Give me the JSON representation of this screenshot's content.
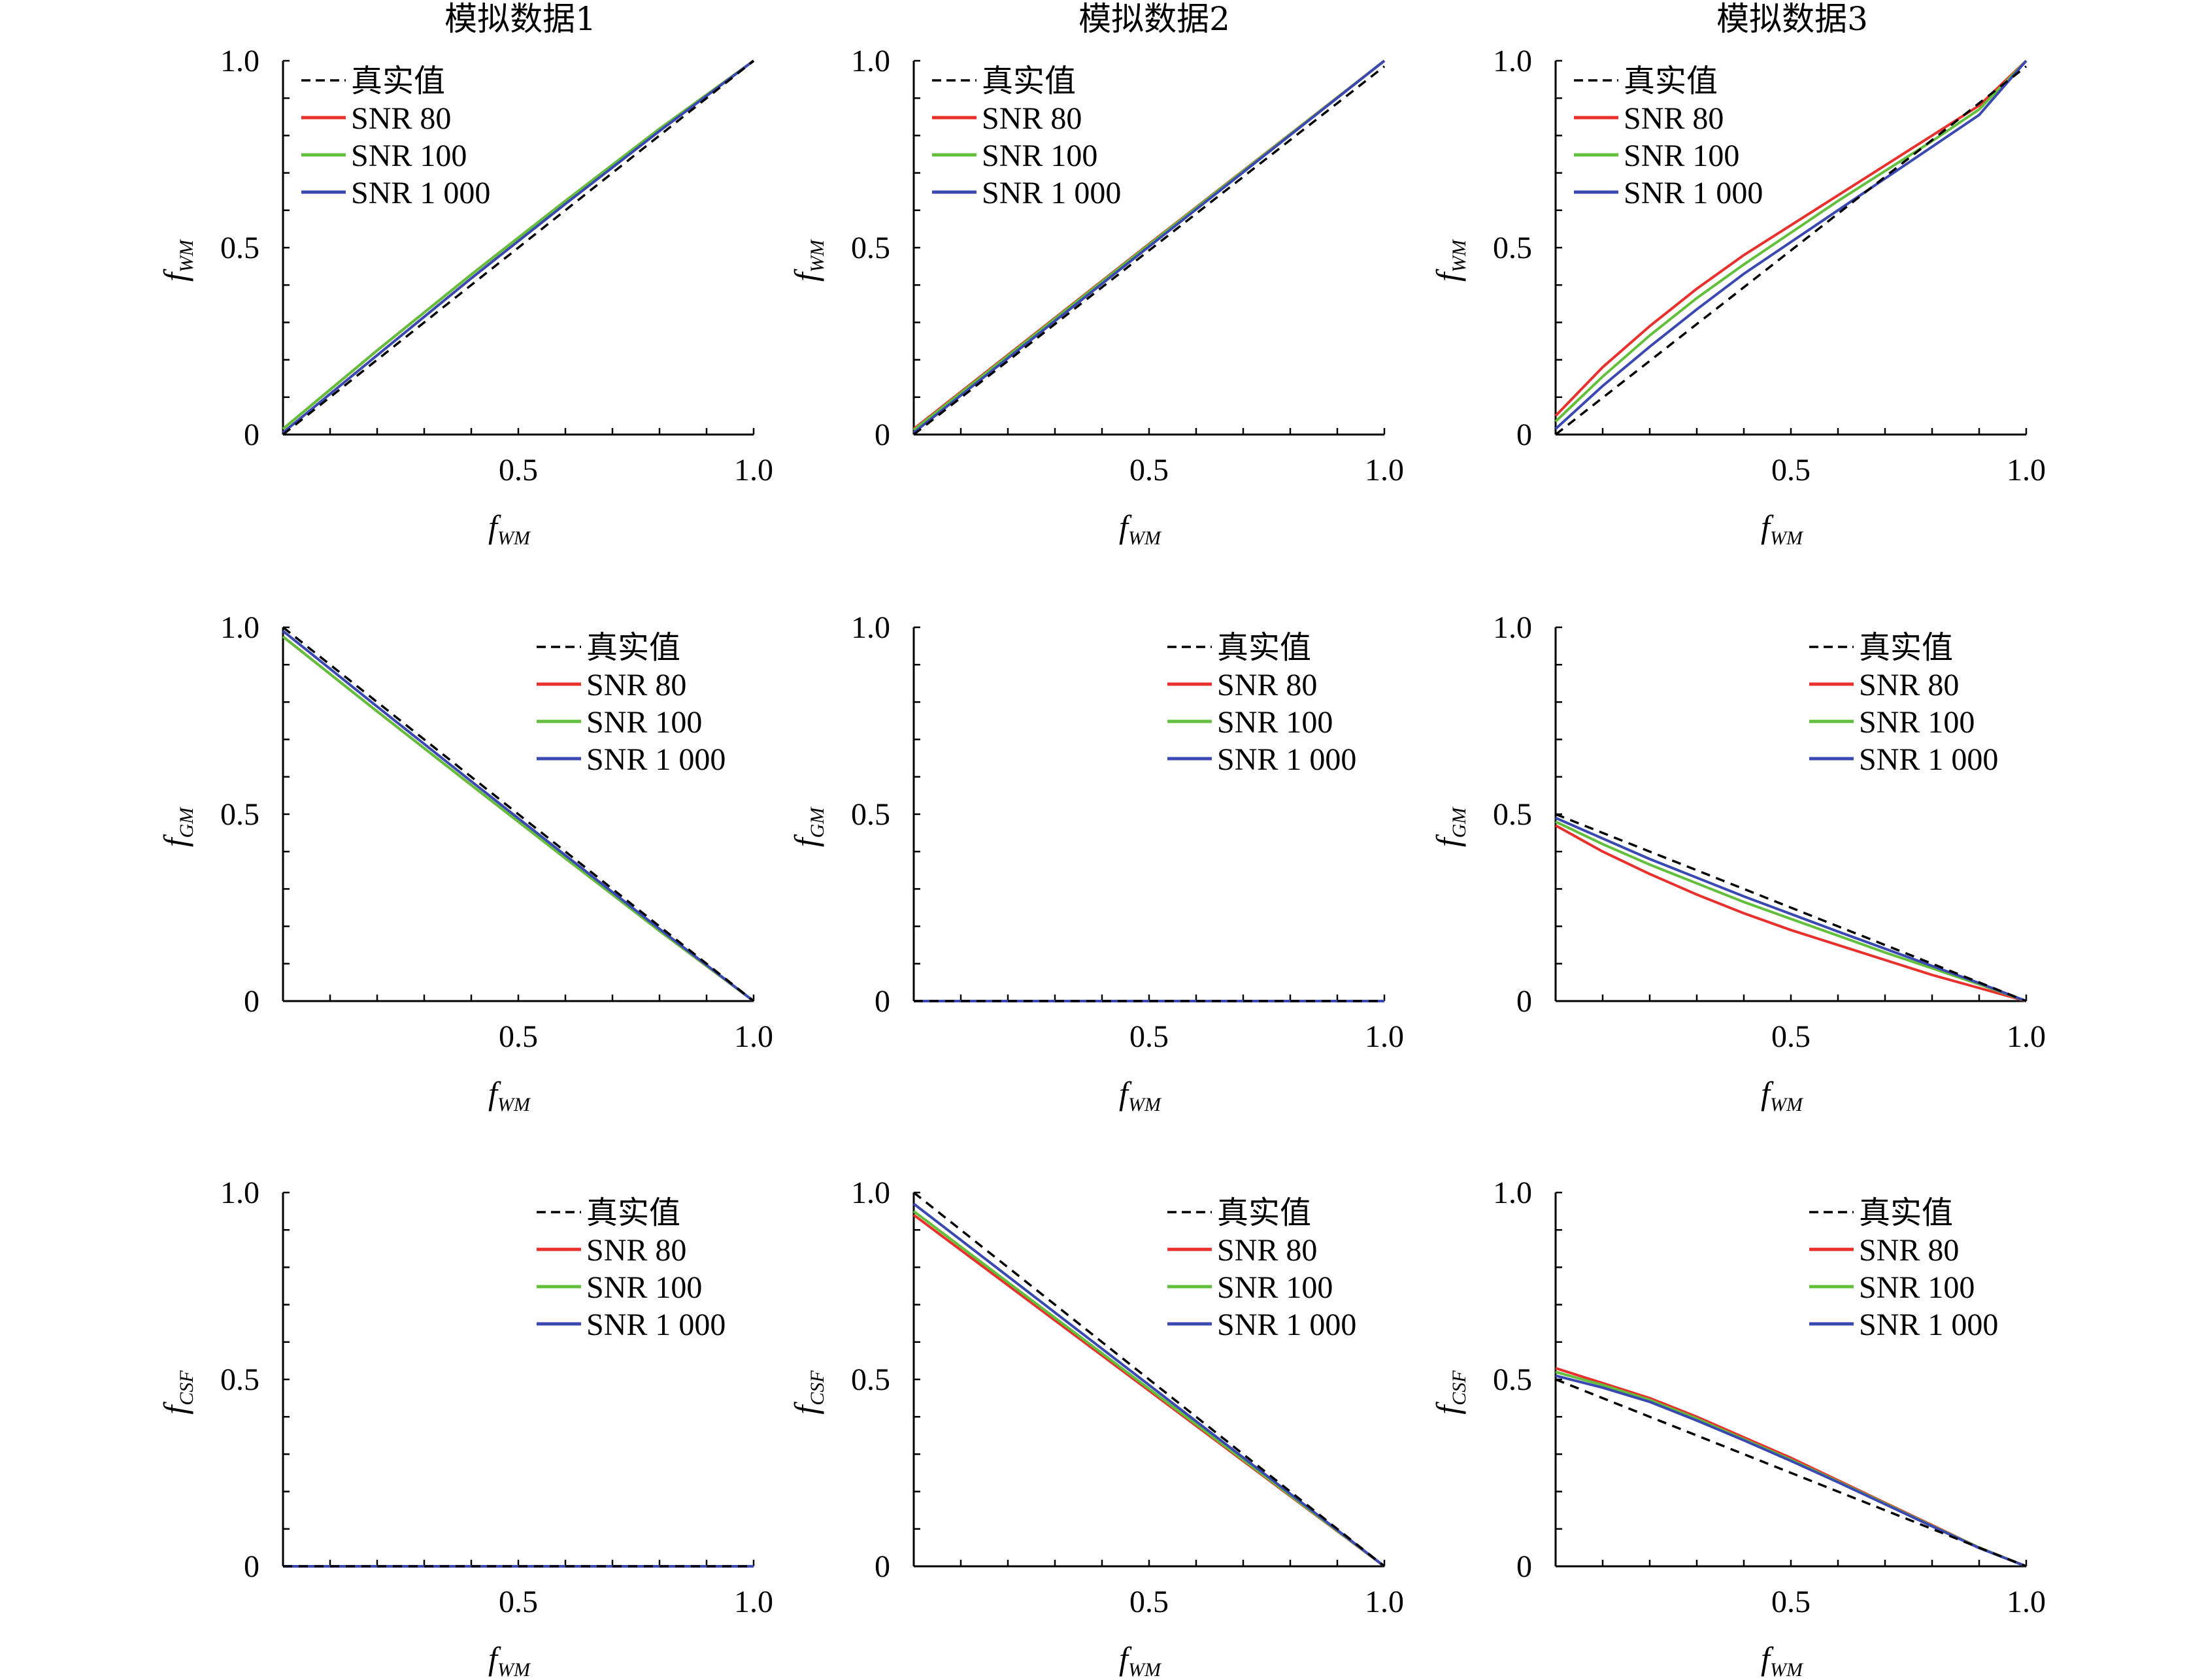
{
  "colors": {
    "truth": "#000000",
    "snr80": "#e8312c",
    "snr100": "#62bf3c",
    "snr1000": "#3a49b2"
  },
  "column_titles": [
    "模拟数据1",
    "模拟数据2",
    "模拟数据3"
  ],
  "legend": {
    "truth": "真实值",
    "snr80": "SNR 80",
    "snr100": "SNR 100",
    "snr1000": "SNR 1 000"
  },
  "chart_data": [
    {
      "type": "line",
      "row": 0,
      "col": 0,
      "xlabel": "f",
      "xlabel_sub": "WM",
      "ylabel": "f",
      "ylabel_sub": "WM",
      "xlim": [
        0,
        1
      ],
      "ylim": [
        0,
        1
      ],
      "xticklabels": [
        "0.5",
        "1.0"
      ],
      "yticklabels": [
        "0",
        "0.5",
        "1.0"
      ],
      "legend_position": "top-left",
      "series": [
        {
          "name": "真实值",
          "key": "truth",
          "dashed": true,
          "x": [
            0,
            1
          ],
          "y": [
            0,
            1
          ]
        },
        {
          "name": "SNR 80",
          "key": "snr80",
          "x": [
            0,
            0.2,
            0.4,
            0.6,
            0.8,
            1
          ],
          "y": [
            0.015,
            0.225,
            0.428,
            0.625,
            0.818,
            1
          ]
        },
        {
          "name": "SNR 100",
          "key": "snr100",
          "x": [
            0,
            0.2,
            0.4,
            0.6,
            0.8,
            1
          ],
          "y": [
            0.015,
            0.225,
            0.428,
            0.625,
            0.818,
            1
          ]
        },
        {
          "name": "SNR 1 000",
          "key": "snr1000",
          "x": [
            0,
            0.2,
            0.4,
            0.6,
            0.8,
            1
          ],
          "y": [
            0.005,
            0.212,
            0.418,
            0.617,
            0.812,
            1
          ]
        }
      ]
    },
    {
      "type": "line",
      "row": 0,
      "col": 1,
      "xlabel": "f",
      "xlabel_sub": "WM",
      "ylabel": "f",
      "ylabel_sub": "WM",
      "xlim": [
        0,
        1
      ],
      "ylim": [
        0,
        1
      ],
      "xticklabels": [
        "0.5",
        "1.0"
      ],
      "yticklabels": [
        "0",
        "0.5",
        "1.0"
      ],
      "legend_position": "top-left",
      "series": [
        {
          "name": "真实值",
          "key": "truth",
          "dashed": true,
          "x": [
            0,
            1
          ],
          "y": [
            0,
            0.985
          ]
        },
        {
          "name": "SNR 80",
          "key": "snr80",
          "x": [
            0,
            0.5,
            1
          ],
          "y": [
            0.015,
            0.51,
            1
          ]
        },
        {
          "name": "SNR 100",
          "key": "snr100",
          "x": [
            0,
            0.5,
            1
          ],
          "y": [
            0.012,
            0.508,
            1
          ]
        },
        {
          "name": "SNR 1 000",
          "key": "snr1000",
          "x": [
            0,
            0.5,
            1
          ],
          "y": [
            0.005,
            0.503,
            1
          ]
        }
      ]
    },
    {
      "type": "line",
      "row": 0,
      "col": 2,
      "xlabel": "f",
      "xlabel_sub": "WM",
      "ylabel": "f",
      "ylabel_sub": "WM",
      "xlim": [
        0,
        1
      ],
      "ylim": [
        0,
        1
      ],
      "xticklabels": [
        "0.5",
        "1.0"
      ],
      "yticklabels": [
        "0",
        "0.5",
        "1.0"
      ],
      "legend_position": "top-left",
      "series": [
        {
          "name": "真实值",
          "key": "truth",
          "dashed": true,
          "x": [
            0,
            1
          ],
          "y": [
            0,
            0.985
          ]
        },
        {
          "name": "SNR 80",
          "key": "snr80",
          "x": [
            0,
            0.1,
            0.2,
            0.3,
            0.4,
            0.5,
            0.6,
            0.7,
            0.8,
            0.9,
            1
          ],
          "y": [
            0.05,
            0.18,
            0.29,
            0.39,
            0.48,
            0.56,
            0.64,
            0.72,
            0.8,
            0.88,
            1
          ]
        },
        {
          "name": "SNR 100",
          "key": "snr100",
          "x": [
            0,
            0.1,
            0.2,
            0.3,
            0.4,
            0.5,
            0.6,
            0.7,
            0.8,
            0.9,
            1
          ],
          "y": [
            0.035,
            0.155,
            0.265,
            0.365,
            0.455,
            0.54,
            0.625,
            0.705,
            0.785,
            0.87,
            1
          ]
        },
        {
          "name": "SNR 1 000",
          "key": "snr1000",
          "x": [
            0,
            0.1,
            0.2,
            0.3,
            0.4,
            0.5,
            0.6,
            0.7,
            0.8,
            0.9,
            1
          ],
          "y": [
            0.015,
            0.13,
            0.235,
            0.335,
            0.43,
            0.515,
            0.6,
            0.685,
            0.77,
            0.855,
            1
          ]
        }
      ]
    },
    {
      "type": "line",
      "row": 1,
      "col": 0,
      "xlabel": "f",
      "xlabel_sub": "WM",
      "ylabel": "f",
      "ylabel_sub": "GM",
      "xlim": [
        0,
        1
      ],
      "ylim": [
        0,
        1
      ],
      "xticklabels": [
        "0.5",
        "1.0"
      ],
      "yticklabels": [
        "0",
        "0.5",
        "1.0"
      ],
      "legend_position": "top-right",
      "series": [
        {
          "name": "真实值",
          "key": "truth",
          "dashed": true,
          "x": [
            0,
            1
          ],
          "y": [
            1,
            0
          ]
        },
        {
          "name": "SNR 80",
          "key": "snr80",
          "x": [
            0,
            0.2,
            0.4,
            0.6,
            0.8,
            1
          ],
          "y": [
            0.975,
            0.775,
            0.578,
            0.382,
            0.188,
            0
          ]
        },
        {
          "name": "SNR 100",
          "key": "snr100",
          "x": [
            0,
            0.2,
            0.4,
            0.6,
            0.8,
            1
          ],
          "y": [
            0.975,
            0.775,
            0.578,
            0.382,
            0.188,
            0
          ]
        },
        {
          "name": "SNR 1 000",
          "key": "snr1000",
          "x": [
            0,
            0.2,
            0.4,
            0.6,
            0.8,
            1
          ],
          "y": [
            0.99,
            0.788,
            0.588,
            0.39,
            0.193,
            0
          ]
        }
      ]
    },
    {
      "type": "line",
      "row": 1,
      "col": 1,
      "xlabel": "f",
      "xlabel_sub": "WM",
      "ylabel": "f",
      "ylabel_sub": "GM",
      "xlim": [
        0,
        1
      ],
      "ylim": [
        0,
        1
      ],
      "xticklabels": [
        "0.5",
        "1.0"
      ],
      "yticklabels": [
        "0",
        "0.5",
        "1.0"
      ],
      "legend_position": "top-right",
      "series": [
        {
          "name": "真实值",
          "key": "truth",
          "dashed": true,
          "x": [
            0,
            1
          ],
          "y": [
            0,
            0
          ]
        },
        {
          "name": "SNR 80",
          "key": "snr80",
          "x": [
            0,
            1
          ],
          "y": [
            0,
            0
          ]
        },
        {
          "name": "SNR 100",
          "key": "snr100",
          "x": [
            0,
            1
          ],
          "y": [
            0,
            0
          ]
        },
        {
          "name": "SNR 1 000",
          "key": "snr1000",
          "x": [
            0,
            1
          ],
          "y": [
            0,
            0
          ]
        }
      ]
    },
    {
      "type": "line",
      "row": 1,
      "col": 2,
      "xlabel": "f",
      "xlabel_sub": "WM",
      "ylabel": "f",
      "ylabel_sub": "GM",
      "xlim": [
        0,
        1
      ],
      "ylim": [
        0,
        1
      ],
      "xticklabels": [
        "0.5",
        "1.0"
      ],
      "yticklabels": [
        "0",
        "0.5",
        "1.0"
      ],
      "legend_position": "top-right",
      "series": [
        {
          "name": "真实值",
          "key": "truth",
          "dashed": true,
          "x": [
            0,
            1
          ],
          "y": [
            0.5,
            0
          ]
        },
        {
          "name": "SNR 80",
          "key": "snr80",
          "x": [
            0,
            0.1,
            0.2,
            0.3,
            0.4,
            0.5,
            0.6,
            0.7,
            0.8,
            0.9,
            1
          ],
          "y": [
            0.47,
            0.4,
            0.34,
            0.285,
            0.235,
            0.19,
            0.15,
            0.11,
            0.07,
            0.035,
            0
          ]
        },
        {
          "name": "SNR 100",
          "key": "snr100",
          "x": [
            0,
            0.1,
            0.2,
            0.3,
            0.4,
            0.5,
            0.6,
            0.7,
            0.8,
            0.9,
            1
          ],
          "y": [
            0.48,
            0.42,
            0.365,
            0.315,
            0.265,
            0.22,
            0.175,
            0.13,
            0.088,
            0.045,
            0
          ]
        },
        {
          "name": "SNR 1 000",
          "key": "snr1000",
          "x": [
            0,
            0.1,
            0.2,
            0.3,
            0.4,
            0.5,
            0.6,
            0.7,
            0.8,
            0.9,
            1
          ],
          "y": [
            0.49,
            0.435,
            0.38,
            0.33,
            0.28,
            0.233,
            0.186,
            0.14,
            0.094,
            0.048,
            0
          ]
        }
      ]
    },
    {
      "type": "line",
      "row": 2,
      "col": 0,
      "xlabel": "f",
      "xlabel_sub": "WM",
      "ylabel": "f",
      "ylabel_sub": "CSF",
      "xlim": [
        0,
        1
      ],
      "ylim": [
        0,
        1
      ],
      "xticklabels": [
        "0.5",
        "1.0"
      ],
      "yticklabels": [
        "0",
        "0.5",
        "1.0"
      ],
      "legend_position": "top-right",
      "series": [
        {
          "name": "真实值",
          "key": "truth",
          "dashed": true,
          "x": [
            0,
            1
          ],
          "y": [
            0,
            0
          ]
        },
        {
          "name": "SNR 80",
          "key": "snr80",
          "x": [
            0,
            1
          ],
          "y": [
            0,
            0
          ]
        },
        {
          "name": "SNR 100",
          "key": "snr100",
          "x": [
            0,
            1
          ],
          "y": [
            0,
            0
          ]
        },
        {
          "name": "SNR 1 000",
          "key": "snr1000",
          "x": [
            0,
            1
          ],
          "y": [
            0,
            0
          ]
        }
      ]
    },
    {
      "type": "line",
      "row": 2,
      "col": 1,
      "xlabel": "f",
      "xlabel_sub": "WM",
      "ylabel": "f",
      "ylabel_sub": "CSF",
      "xlim": [
        0,
        1
      ],
      "ylim": [
        0,
        1
      ],
      "xticklabels": [
        "0.5",
        "1.0"
      ],
      "yticklabels": [
        "0",
        "0.5",
        "1.0"
      ],
      "legend_position": "top-right",
      "series": [
        {
          "name": "真实值",
          "key": "truth",
          "dashed": true,
          "x": [
            0,
            1
          ],
          "y": [
            1,
            0
          ]
        },
        {
          "name": "SNR 80",
          "key": "snr80",
          "x": [
            0,
            0.5,
            1
          ],
          "y": [
            0.94,
            0.47,
            0
          ]
        },
        {
          "name": "SNR 100",
          "key": "snr100",
          "x": [
            0,
            0.5,
            1
          ],
          "y": [
            0.95,
            0.475,
            0
          ]
        },
        {
          "name": "SNR 1 000",
          "key": "snr1000",
          "x": [
            0,
            0.5,
            1
          ],
          "y": [
            0.97,
            0.485,
            0
          ]
        }
      ]
    },
    {
      "type": "line",
      "row": 2,
      "col": 2,
      "xlabel": "f",
      "xlabel_sub": "WM",
      "ylabel": "f",
      "ylabel_sub": "CSF",
      "xlim": [
        0,
        1
      ],
      "ylim": [
        0,
        1
      ],
      "xticklabels": [
        "0.5",
        "1.0"
      ],
      "yticklabels": [
        "0",
        "0.5",
        "1.0"
      ],
      "legend_position": "top-right",
      "series": [
        {
          "name": "真实值",
          "key": "truth",
          "dashed": true,
          "x": [
            0,
            1
          ],
          "y": [
            0.5,
            0
          ]
        },
        {
          "name": "SNR 80",
          "key": "snr80",
          "x": [
            0,
            0.1,
            0.2,
            0.3,
            0.4,
            0.5,
            0.6,
            0.7,
            0.8,
            0.9,
            1
          ],
          "y": [
            0.53,
            0.49,
            0.45,
            0.4,
            0.345,
            0.29,
            0.23,
            0.17,
            0.11,
            0.05,
            0
          ]
        },
        {
          "name": "SNR 100",
          "key": "snr100",
          "x": [
            0,
            0.1,
            0.2,
            0.3,
            0.4,
            0.5,
            0.6,
            0.7,
            0.8,
            0.9,
            1
          ],
          "y": [
            0.52,
            0.485,
            0.445,
            0.395,
            0.34,
            0.285,
            0.227,
            0.168,
            0.108,
            0.05,
            0
          ]
        },
        {
          "name": "SNR 1 000",
          "key": "snr1000",
          "x": [
            0,
            0.1,
            0.2,
            0.3,
            0.4,
            0.5,
            0.6,
            0.7,
            0.8,
            0.9,
            1
          ],
          "y": [
            0.51,
            0.478,
            0.44,
            0.39,
            0.337,
            0.282,
            0.225,
            0.166,
            0.107,
            0.049,
            0
          ]
        }
      ]
    }
  ]
}
